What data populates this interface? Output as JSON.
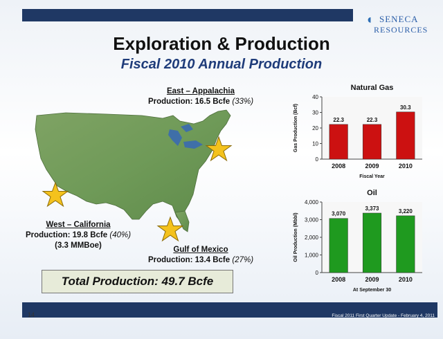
{
  "header": {
    "title": "Exploration & Production",
    "subtitle": "Fiscal 2010 Annual Production",
    "logo_line1": "SENECA",
    "logo_line2": "RESOURCES"
  },
  "regions": {
    "east": {
      "heading": "East – Appalachia",
      "production": "Production: 16.5 Bcfe",
      "pct": "(33%)"
    },
    "west": {
      "heading": "West – California",
      "production": "Production: 19.8 Bcfe",
      "pct": "(40%)",
      "extra": "(3.3 MMBoe)"
    },
    "gulf": {
      "heading": "Gulf of Mexico",
      "production": "Production: 13.4 Bcfe",
      "pct": "(27%)"
    }
  },
  "total": "Total Production: 49.7 Bcfe",
  "footer": {
    "page": "14",
    "text": "Fiscal 2011 First Quarter Update -  February 4, 2011"
  },
  "colors": {
    "gas_bar": "#cc1111",
    "oil_bar": "#1f9a1f",
    "bar_bg": "#f7f7f7",
    "navy": "#1f3864"
  },
  "chart_data": [
    {
      "type": "bar",
      "title": "Natural Gas",
      "categories": [
        "2008",
        "2009",
        "2010"
      ],
      "values": [
        22.3,
        22.3,
        30.3
      ],
      "value_labels": [
        "22.3",
        "22.3",
        "30.3"
      ],
      "xlabel": "Fiscal Year",
      "ylabel": "Gas Production (Bcf)",
      "ylim": [
        0,
        40
      ],
      "yticks": [
        0,
        10,
        20,
        30,
        40
      ],
      "ytick_labels": [
        "0",
        "10",
        "20",
        "30",
        "40"
      ]
    },
    {
      "type": "bar",
      "title": "Oil",
      "categories": [
        "2008",
        "2009",
        "2010"
      ],
      "values": [
        3070,
        3373,
        3220
      ],
      "value_labels": [
        "3,070",
        "3,373",
        "3,220"
      ],
      "xlabel": "At September 30",
      "ylabel": "Oil Production (Mbbl)",
      "ylim": [
        0,
        4000
      ],
      "yticks": [
        0,
        1000,
        2000,
        3000,
        4000
      ],
      "ytick_labels": [
        "0",
        "1,000",
        "2,000",
        "3,000",
        "4,000"
      ]
    }
  ]
}
